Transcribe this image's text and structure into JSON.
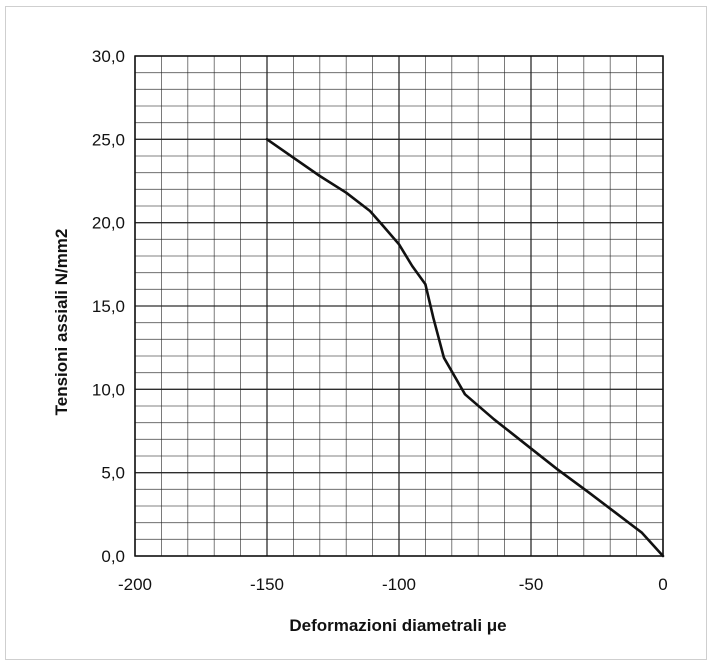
{
  "chart_data": {
    "type": "line",
    "title": "",
    "xlabel": "Deformazioni diametrali μe",
    "ylabel": "Tensioni assiali N/mm2",
    "xlim": [
      -200,
      0
    ],
    "ylim": [
      0,
      30
    ],
    "x_major_step": 50,
    "x_minor_step": 10,
    "y_major_step": 5,
    "y_minor_step": 1,
    "grid": true,
    "x_tick_labels": [
      "-200",
      "-150",
      "-100",
      "-50",
      "0"
    ],
    "y_tick_labels": [
      "0,0",
      "5,0",
      "10,0",
      "15,0",
      "20,0",
      "25,0",
      "30,0"
    ],
    "series": [
      {
        "x": [
          0,
          -8,
          -18,
          -28,
          -40,
          -52,
          -64,
          -75,
          -83,
          -87,
          -90,
          -95,
          -100,
          -106,
          -111,
          -120,
          -130,
          -140,
          -150
        ],
        "y": [
          0,
          1.4,
          2.6,
          3.8,
          5.2,
          6.7,
          8.2,
          9.7,
          11.9,
          14.3,
          16.3,
          17.4,
          18.7,
          19.8,
          20.7,
          21.8,
          22.8,
          23.9,
          25.0
        ]
      }
    ],
    "colors": {
      "line": "#111111",
      "grid": "#222222",
      "background": "#ffffff"
    }
  }
}
